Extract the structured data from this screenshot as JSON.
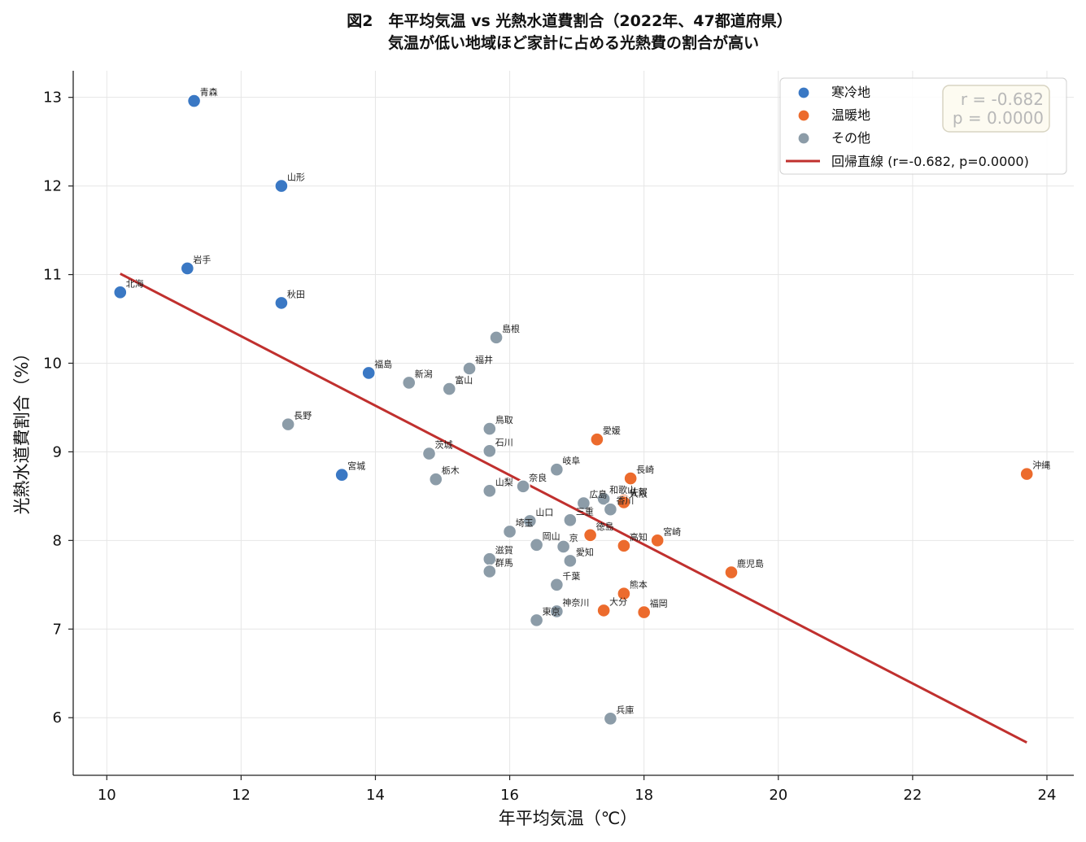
{
  "chart_data": {
    "type": "scatter",
    "title": "図2　年平均気温 vs 光熱水道費割合（2022年、47都道府県）",
    "subtitle": "気温が低い地域ほど家計に占める光熱費の割合が高い",
    "xlabel": "年平均気温（℃）",
    "ylabel": "光熱水道費割合（%）",
    "xlim": [
      9.5,
      24.4
    ],
    "ylim": [
      5.35,
      13.3
    ],
    "xticks": [
      10,
      12,
      14,
      16,
      18,
      20,
      22,
      24
    ],
    "yticks": [
      6,
      7,
      8,
      9,
      10,
      11,
      12,
      13
    ],
    "grid": true,
    "legend_position": "top-right",
    "colors": {
      "cold": "#3a78c4",
      "warm": "#ec6b2d",
      "other": "#8c9ca8",
      "regression": "#c0302e"
    },
    "series": [
      {
        "name": "寒冷地",
        "group": "cold",
        "points": [
          {
            "label": "青森",
            "x": 11.3,
            "y": 12.96
          },
          {
            "label": "山形",
            "x": 12.6,
            "y": 12.0
          },
          {
            "label": "岩手",
            "x": 11.2,
            "y": 11.07
          },
          {
            "label": "北海",
            "x": 10.2,
            "y": 10.8
          },
          {
            "label": "秋田",
            "x": 12.6,
            "y": 10.68
          },
          {
            "label": "福島",
            "x": 13.9,
            "y": 9.89
          },
          {
            "label": "宮城",
            "x": 13.5,
            "y": 8.74
          }
        ]
      },
      {
        "name": "温暖地",
        "group": "warm",
        "points": [
          {
            "label": "愛媛",
            "x": 17.3,
            "y": 9.14
          },
          {
            "label": "長崎",
            "x": 17.8,
            "y": 8.7
          },
          {
            "label": "沖縄",
            "x": 23.7,
            "y": 8.75
          },
          {
            "label": "佐賀",
            "x": 17.7,
            "y": 8.45
          },
          {
            "label": "大阪",
            "x": 17.7,
            "y": 8.43
          },
          {
            "label": "徳島",
            "x": 17.2,
            "y": 8.06
          },
          {
            "label": "高知",
            "x": 17.7,
            "y": 7.94
          },
          {
            "label": "宮崎",
            "x": 18.2,
            "y": 8.0
          },
          {
            "label": "鹿児島",
            "x": 19.3,
            "y": 7.64
          },
          {
            "label": "熊本",
            "x": 17.7,
            "y": 7.4
          },
          {
            "label": "大分",
            "x": 17.4,
            "y": 7.21
          },
          {
            "label": "福岡",
            "x": 18.0,
            "y": 7.19
          }
        ]
      },
      {
        "name": "その他",
        "group": "other",
        "points": [
          {
            "label": "島根",
            "x": 15.8,
            "y": 10.29
          },
          {
            "label": "福井",
            "x": 15.4,
            "y": 9.94
          },
          {
            "label": "新潟",
            "x": 14.5,
            "y": 9.78
          },
          {
            "label": "富山",
            "x": 15.1,
            "y": 9.71
          },
          {
            "label": "長野",
            "x": 12.7,
            "y": 9.31
          },
          {
            "label": "鳥取",
            "x": 15.7,
            "y": 9.26
          },
          {
            "label": "石川",
            "x": 15.7,
            "y": 9.01
          },
          {
            "label": "茨城",
            "x": 14.8,
            "y": 8.98
          },
          {
            "label": "岐阜",
            "x": 16.7,
            "y": 8.8
          },
          {
            "label": "栃木",
            "x": 14.9,
            "y": 8.69
          },
          {
            "label": "奈良",
            "x": 16.2,
            "y": 8.61
          },
          {
            "label": "山梨",
            "x": 15.7,
            "y": 8.56
          },
          {
            "label": "広島",
            "x": 17.1,
            "y": 8.42
          },
          {
            "label": "和歌山",
            "x": 17.4,
            "y": 8.47
          },
          {
            "label": "香川",
            "x": 17.5,
            "y": 8.35
          },
          {
            "label": "三重",
            "x": 16.9,
            "y": 8.23
          },
          {
            "label": "山口",
            "x": 16.3,
            "y": 8.22
          },
          {
            "label": "埼玉",
            "x": 16.0,
            "y": 8.1
          },
          {
            "label": "岡山",
            "x": 16.4,
            "y": 7.95
          },
          {
            "label": "京",
            "x": 16.8,
            "y": 7.93
          },
          {
            "label": "愛知",
            "x": 16.9,
            "y": 7.77
          },
          {
            "label": "滋賀",
            "x": 15.7,
            "y": 7.79
          },
          {
            "label": "群馬",
            "x": 15.7,
            "y": 7.65
          },
          {
            "label": "千葉",
            "x": 16.7,
            "y": 7.5
          },
          {
            "label": "神奈川",
            "x": 16.7,
            "y": 7.2
          },
          {
            "label": "東京",
            "x": 16.4,
            "y": 7.1
          },
          {
            "label": "兵庫",
            "x": 17.5,
            "y": 5.99
          }
        ]
      }
    ],
    "regression": {
      "name": "回帰直線 (r=-0.682, p=0.0000)",
      "x": [
        10.2,
        23.7
      ],
      "y": [
        11.01,
        5.72
      ]
    },
    "stats": {
      "r_text": "r = -0.682",
      "p_text": "p = 0.0000"
    }
  }
}
